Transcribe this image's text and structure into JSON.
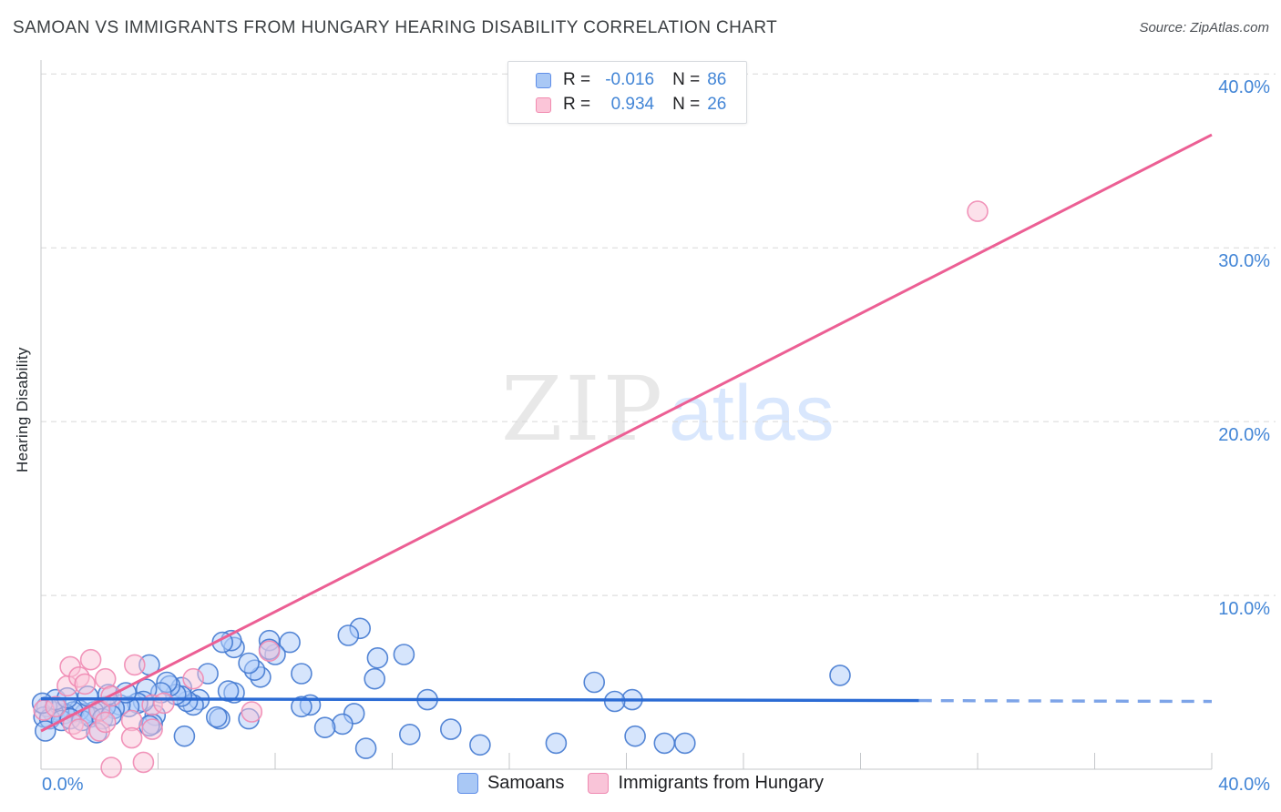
{
  "title": "SAMOAN VS IMMIGRANTS FROM HUNGARY HEARING DISABILITY CORRELATION CHART",
  "source": "Source: ZipAtlas.com",
  "watermark": {
    "part1": "ZIP",
    "part2": "atlas"
  },
  "stats_box": {
    "rows": [
      {
        "swatch": "blue",
        "r_label": "R =",
        "r_value": "-0.016",
        "n_label": "N =",
        "n_value": "86"
      },
      {
        "swatch": "pink",
        "r_label": "R =",
        "r_value": "0.934",
        "n_label": "N =",
        "n_value": "26"
      }
    ]
  },
  "axes": {
    "y_label": "Hearing Disability",
    "x_min_label": "0.0%",
    "x_max_label": "40.0%",
    "y_tick_labels": [
      "10.0%",
      "20.0%",
      "30.0%",
      "40.0%"
    ]
  },
  "bottom_legend": {
    "items": [
      {
        "swatch": "blue",
        "label": "Samoans"
      },
      {
        "swatch": "pink",
        "label": "Immigrants from Hungary"
      }
    ]
  },
  "colors": {
    "blue_marker_fill": "#aecbfa",
    "blue_marker_stroke": "#4379d0",
    "pink_marker_fill": "#f9c4d8",
    "pink_marker_stroke": "#ef8ab2",
    "blue_trend": "#2b6bd4",
    "blue_trend_dashed": "#7da4e8",
    "pink_trend": "#ec5f94",
    "axis_text": "#4285d6",
    "gridline": "#d8d8d8",
    "axis_line": "#c4c7ca"
  },
  "chart_data": {
    "type": "scatter",
    "title": "SAMOAN VS IMMIGRANTS FROM HUNGARY HEARING DISABILITY CORRELATION CHART",
    "xlabel": "",
    "ylabel": "Hearing Disability",
    "xlim": [
      0,
      40
    ],
    "ylim": [
      0,
      40.8
    ],
    "grid": true,
    "legend_position": "bottom",
    "y_gridlines": [
      10,
      20,
      30,
      40
    ],
    "x_tick_step": 4,
    "series": [
      {
        "name": "Samoans",
        "R": -0.016,
        "N": 86,
        "points": [
          [
            27.3,
            5.4
          ],
          [
            22.0,
            1.5
          ],
          [
            21.3,
            1.5
          ],
          [
            20.3,
            1.9
          ],
          [
            20.2,
            4.0
          ],
          [
            19.6,
            3.9
          ],
          [
            18.9,
            5.0
          ],
          [
            17.6,
            1.5
          ],
          [
            15.0,
            1.4
          ],
          [
            14.0,
            2.3
          ],
          [
            13.2,
            4.0
          ],
          [
            12.6,
            2.0
          ],
          [
            12.4,
            6.6
          ],
          [
            11.5,
            6.4
          ],
          [
            11.4,
            5.2
          ],
          [
            11.1,
            1.2
          ],
          [
            10.9,
            8.1
          ],
          [
            10.5,
            7.7
          ],
          [
            10.7,
            3.2
          ],
          [
            10.3,
            2.6
          ],
          [
            9.7,
            2.4
          ],
          [
            9.2,
            3.7
          ],
          [
            8.9,
            3.6
          ],
          [
            8.9,
            5.5
          ],
          [
            8.5,
            7.3
          ],
          [
            8.0,
            6.6
          ],
          [
            7.8,
            7.4
          ],
          [
            7.8,
            6.9
          ],
          [
            7.5,
            5.3
          ],
          [
            7.3,
            5.7
          ],
          [
            7.1,
            6.1
          ],
          [
            7.1,
            2.9
          ],
          [
            6.6,
            7.0
          ],
          [
            6.5,
            7.4
          ],
          [
            6.2,
            7.3
          ],
          [
            6.6,
            4.4
          ],
          [
            6.4,
            4.5
          ],
          [
            6.1,
            2.9
          ],
          [
            6.0,
            3.0
          ],
          [
            5.7,
            5.5
          ],
          [
            5.4,
            4.0
          ],
          [
            5.2,
            3.7
          ],
          [
            5.0,
            3.9
          ],
          [
            4.9,
            1.9
          ],
          [
            4.8,
            4.7
          ],
          [
            4.8,
            4.2
          ],
          [
            4.6,
            4.3
          ],
          [
            4.4,
            4.8
          ],
          [
            4.3,
            5.0
          ],
          [
            4.1,
            4.4
          ],
          [
            3.9,
            3.1
          ],
          [
            3.8,
            2.6
          ],
          [
            3.7,
            2.5
          ],
          [
            3.7,
            6.0
          ],
          [
            3.6,
            4.6
          ],
          [
            3.5,
            3.9
          ],
          [
            3.3,
            3.8
          ],
          [
            3.0,
            3.6
          ],
          [
            2.7,
            3.7
          ],
          [
            2.5,
            3.5
          ],
          [
            2.2,
            3.6
          ],
          [
            2.0,
            3.4
          ],
          [
            1.8,
            3.3
          ],
          [
            1.5,
            3.2
          ],
          [
            1.3,
            3.4
          ],
          [
            1.1,
            3.3
          ],
          [
            0.8,
            3.2
          ],
          [
            0.6,
            3.4
          ],
          [
            0.4,
            3.3
          ],
          [
            0.2,
            3.6
          ],
          [
            0.1,
            3.0
          ],
          [
            0.3,
            2.9
          ],
          [
            0.7,
            2.8
          ],
          [
            1.0,
            2.9
          ],
          [
            1.4,
            2.8
          ],
          [
            1.7,
            3.0
          ],
          [
            2.1,
            2.9
          ],
          [
            2.4,
            3.1
          ],
          [
            0.5,
            4.0
          ],
          [
            0.9,
            4.1
          ],
          [
            1.6,
            4.2
          ],
          [
            2.3,
            4.3
          ],
          [
            2.9,
            4.4
          ],
          [
            0.15,
            2.2
          ],
          [
            1.9,
            2.1
          ],
          [
            0.05,
            3.8
          ]
        ]
      },
      {
        "name": "Immigrants from Hungary",
        "R": 0.934,
        "N": 26,
        "points": [
          [
            0.1,
            3.4
          ],
          [
            0.5,
            3.6
          ],
          [
            0.9,
            4.8
          ],
          [
            1.0,
            5.9
          ],
          [
            1.1,
            2.6
          ],
          [
            1.3,
            5.3
          ],
          [
            1.3,
            2.3
          ],
          [
            1.5,
            4.9
          ],
          [
            1.7,
            6.3
          ],
          [
            2.0,
            3.4
          ],
          [
            2.0,
            2.2
          ],
          [
            2.2,
            5.2
          ],
          [
            2.2,
            2.7
          ],
          [
            2.4,
            4.2
          ],
          [
            2.4,
            0.1
          ],
          [
            3.1,
            2.8
          ],
          [
            3.1,
            1.8
          ],
          [
            3.2,
            6.0
          ],
          [
            3.5,
            0.4
          ],
          [
            3.8,
            3.7
          ],
          [
            3.8,
            2.3
          ],
          [
            4.2,
            3.8
          ],
          [
            5.2,
            5.2
          ],
          [
            7.2,
            3.3
          ],
          [
            7.8,
            6.8
          ],
          [
            32.0,
            32.1
          ]
        ]
      }
    ],
    "trendlines": [
      {
        "series": "Immigrants from Hungary",
        "style": "solid",
        "x0": 0,
        "y0": 2.2,
        "x1": 40,
        "y1": 36.5
      },
      {
        "series": "Samoans",
        "style": "solid",
        "x0": 0,
        "y0": 4.05,
        "x1": 30,
        "y1": 3.95
      },
      {
        "series": "Samoans",
        "style": "dashed",
        "x0": 30,
        "y0": 3.95,
        "x1": 40,
        "y1": 3.9
      }
    ]
  }
}
